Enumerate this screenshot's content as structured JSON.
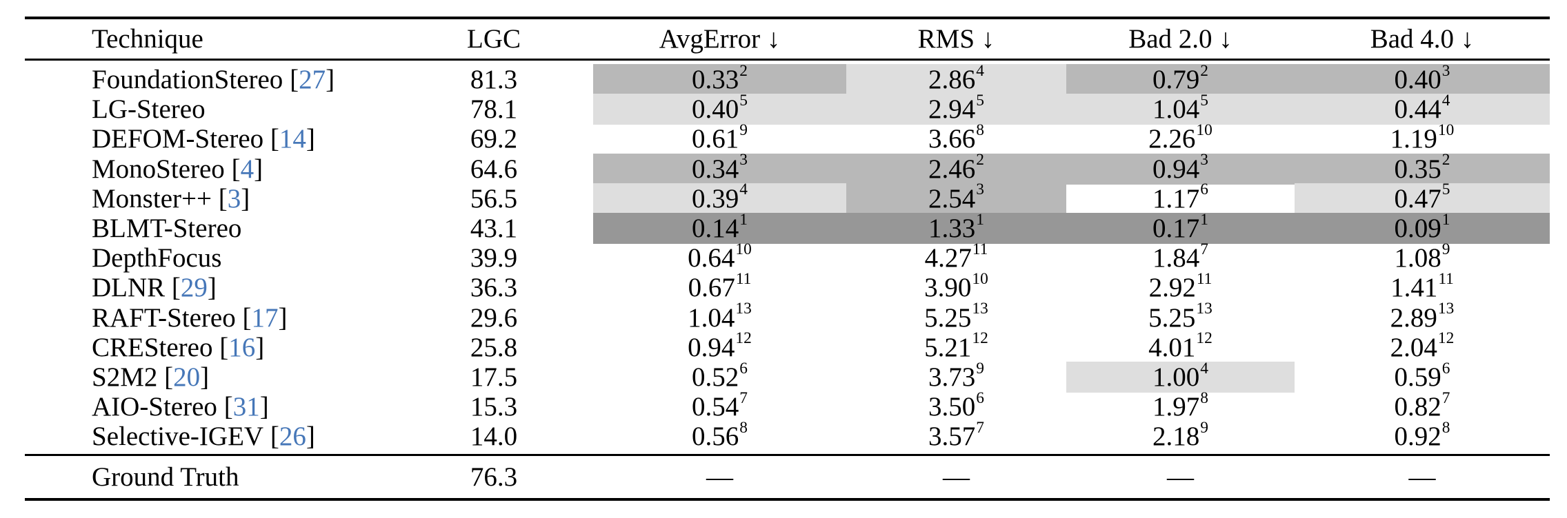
{
  "table": {
    "columns": [
      "Technique",
      "LGC",
      "AvgError ↓",
      "RMS ↓",
      "Bad 2.0 ↓",
      "Bad 4.0 ↓"
    ],
    "rows": [
      {
        "technique": "FoundationStereo",
        "cite": "27",
        "lgc": "81.3",
        "metrics": [
          {
            "value": "0.33",
            "rank": "2",
            "hl": "medium"
          },
          {
            "value": "2.86",
            "rank": "4",
            "hl": "light"
          },
          {
            "value": "0.79",
            "rank": "2",
            "hl": "medium"
          },
          {
            "value": "0.40",
            "rank": "3",
            "hl": "medium"
          }
        ]
      },
      {
        "technique": "LG-Stereo",
        "cite": null,
        "lgc": "78.1",
        "metrics": [
          {
            "value": "0.40",
            "rank": "5",
            "hl": "light"
          },
          {
            "value": "2.94",
            "rank": "5",
            "hl": "light"
          },
          {
            "value": "1.04",
            "rank": "5",
            "hl": "light"
          },
          {
            "value": "0.44",
            "rank": "4",
            "hl": "light"
          }
        ]
      },
      {
        "technique": "DEFOM-Stereo",
        "cite": "14",
        "lgc": "69.2",
        "metrics": [
          {
            "value": "0.61",
            "rank": "9",
            "hl": "none"
          },
          {
            "value": "3.66",
            "rank": "8",
            "hl": "none"
          },
          {
            "value": "2.26",
            "rank": "10",
            "hl": "none"
          },
          {
            "value": "1.19",
            "rank": "10",
            "hl": "none"
          }
        ]
      },
      {
        "technique": "MonoStereo",
        "cite": "4",
        "lgc": "64.6",
        "metrics": [
          {
            "value": "0.34",
            "rank": "3",
            "hl": "medium"
          },
          {
            "value": "2.46",
            "rank": "2",
            "hl": "medium"
          },
          {
            "value": "0.94",
            "rank": "3",
            "hl": "medium"
          },
          {
            "value": "0.35",
            "rank": "2",
            "hl": "medium"
          }
        ]
      },
      {
        "technique": "Monster++",
        "cite": "3",
        "lgc": "56.5",
        "metrics": [
          {
            "value": "0.39",
            "rank": "4",
            "hl": "light"
          },
          {
            "value": "2.54",
            "rank": "3",
            "hl": "medium"
          },
          {
            "value": "1.17",
            "rank": "6",
            "hl": "none"
          },
          {
            "value": "0.47",
            "rank": "5",
            "hl": "light"
          }
        ]
      },
      {
        "technique": "BLMT-Stereo",
        "cite": null,
        "lgc": "43.1",
        "metrics": [
          {
            "value": "0.14",
            "rank": "1",
            "hl": "dark"
          },
          {
            "value": "1.33",
            "rank": "1",
            "hl": "dark"
          },
          {
            "value": "0.17",
            "rank": "1",
            "hl": "dark"
          },
          {
            "value": "0.09",
            "rank": "1",
            "hl": "dark"
          }
        ]
      },
      {
        "technique": "DepthFocus",
        "cite": null,
        "lgc": "39.9",
        "metrics": [
          {
            "value": "0.64",
            "rank": "10",
            "hl": "none"
          },
          {
            "value": "4.27",
            "rank": "11",
            "hl": "none"
          },
          {
            "value": "1.84",
            "rank": "7",
            "hl": "none"
          },
          {
            "value": "1.08",
            "rank": "9",
            "hl": "none"
          }
        ]
      },
      {
        "technique": "DLNR",
        "cite": "29",
        "lgc": "36.3",
        "metrics": [
          {
            "value": "0.67",
            "rank": "11",
            "hl": "none"
          },
          {
            "value": "3.90",
            "rank": "10",
            "hl": "none"
          },
          {
            "value": "2.92",
            "rank": "11",
            "hl": "none"
          },
          {
            "value": "1.41",
            "rank": "11",
            "hl": "none"
          }
        ]
      },
      {
        "technique": "RAFT-Stereo",
        "cite": "17",
        "lgc": "29.6",
        "metrics": [
          {
            "value": "1.04",
            "rank": "13",
            "hl": "none"
          },
          {
            "value": "5.25",
            "rank": "13",
            "hl": "none"
          },
          {
            "value": "5.25",
            "rank": "13",
            "hl": "none"
          },
          {
            "value": "2.89",
            "rank": "13",
            "hl": "none"
          }
        ]
      },
      {
        "technique": "CREStereo",
        "cite": "16",
        "lgc": "25.8",
        "metrics": [
          {
            "value": "0.94",
            "rank": "12",
            "hl": "none"
          },
          {
            "value": "5.21",
            "rank": "12",
            "hl": "none"
          },
          {
            "value": "4.01",
            "rank": "12",
            "hl": "none"
          },
          {
            "value": "2.04",
            "rank": "12",
            "hl": "none"
          }
        ]
      },
      {
        "technique": "S2M2",
        "cite": "20",
        "lgc": "17.5",
        "metrics": [
          {
            "value": "0.52",
            "rank": "6",
            "hl": "none"
          },
          {
            "value": "3.73",
            "rank": "9",
            "hl": "none"
          },
          {
            "value": "1.00",
            "rank": "4",
            "hl": "light"
          },
          {
            "value": "0.59",
            "rank": "6",
            "hl": "none"
          }
        ]
      },
      {
        "technique": "AIO-Stereo",
        "cite": "31",
        "lgc": "15.3",
        "metrics": [
          {
            "value": "0.54",
            "rank": "7",
            "hl": "none"
          },
          {
            "value": "3.50",
            "rank": "6",
            "hl": "none"
          },
          {
            "value": "1.97",
            "rank": "8",
            "hl": "none"
          },
          {
            "value": "0.82",
            "rank": "7",
            "hl": "none"
          }
        ]
      },
      {
        "technique": "Selective-IGEV",
        "cite": "26",
        "lgc": "14.0",
        "metrics": [
          {
            "value": "0.56",
            "rank": "8",
            "hl": "none"
          },
          {
            "value": "3.57",
            "rank": "7",
            "hl": "none"
          },
          {
            "value": "2.18",
            "rank": "9",
            "hl": "none"
          },
          {
            "value": "0.92",
            "rank": "8",
            "hl": "none"
          }
        ]
      }
    ],
    "footer_row": {
      "technique": "Ground Truth",
      "lgc": "76.3",
      "metrics": [
        {
          "value": "—"
        },
        {
          "value": "—"
        },
        {
          "value": "—"
        },
        {
          "value": "—"
        }
      ]
    }
  },
  "colors": {
    "highlight_light": "#dedede",
    "highlight_medium": "#b8b8b8",
    "highlight_dark": "#979797",
    "citation_blue": "#4677b8",
    "rule_black": "#000000"
  }
}
